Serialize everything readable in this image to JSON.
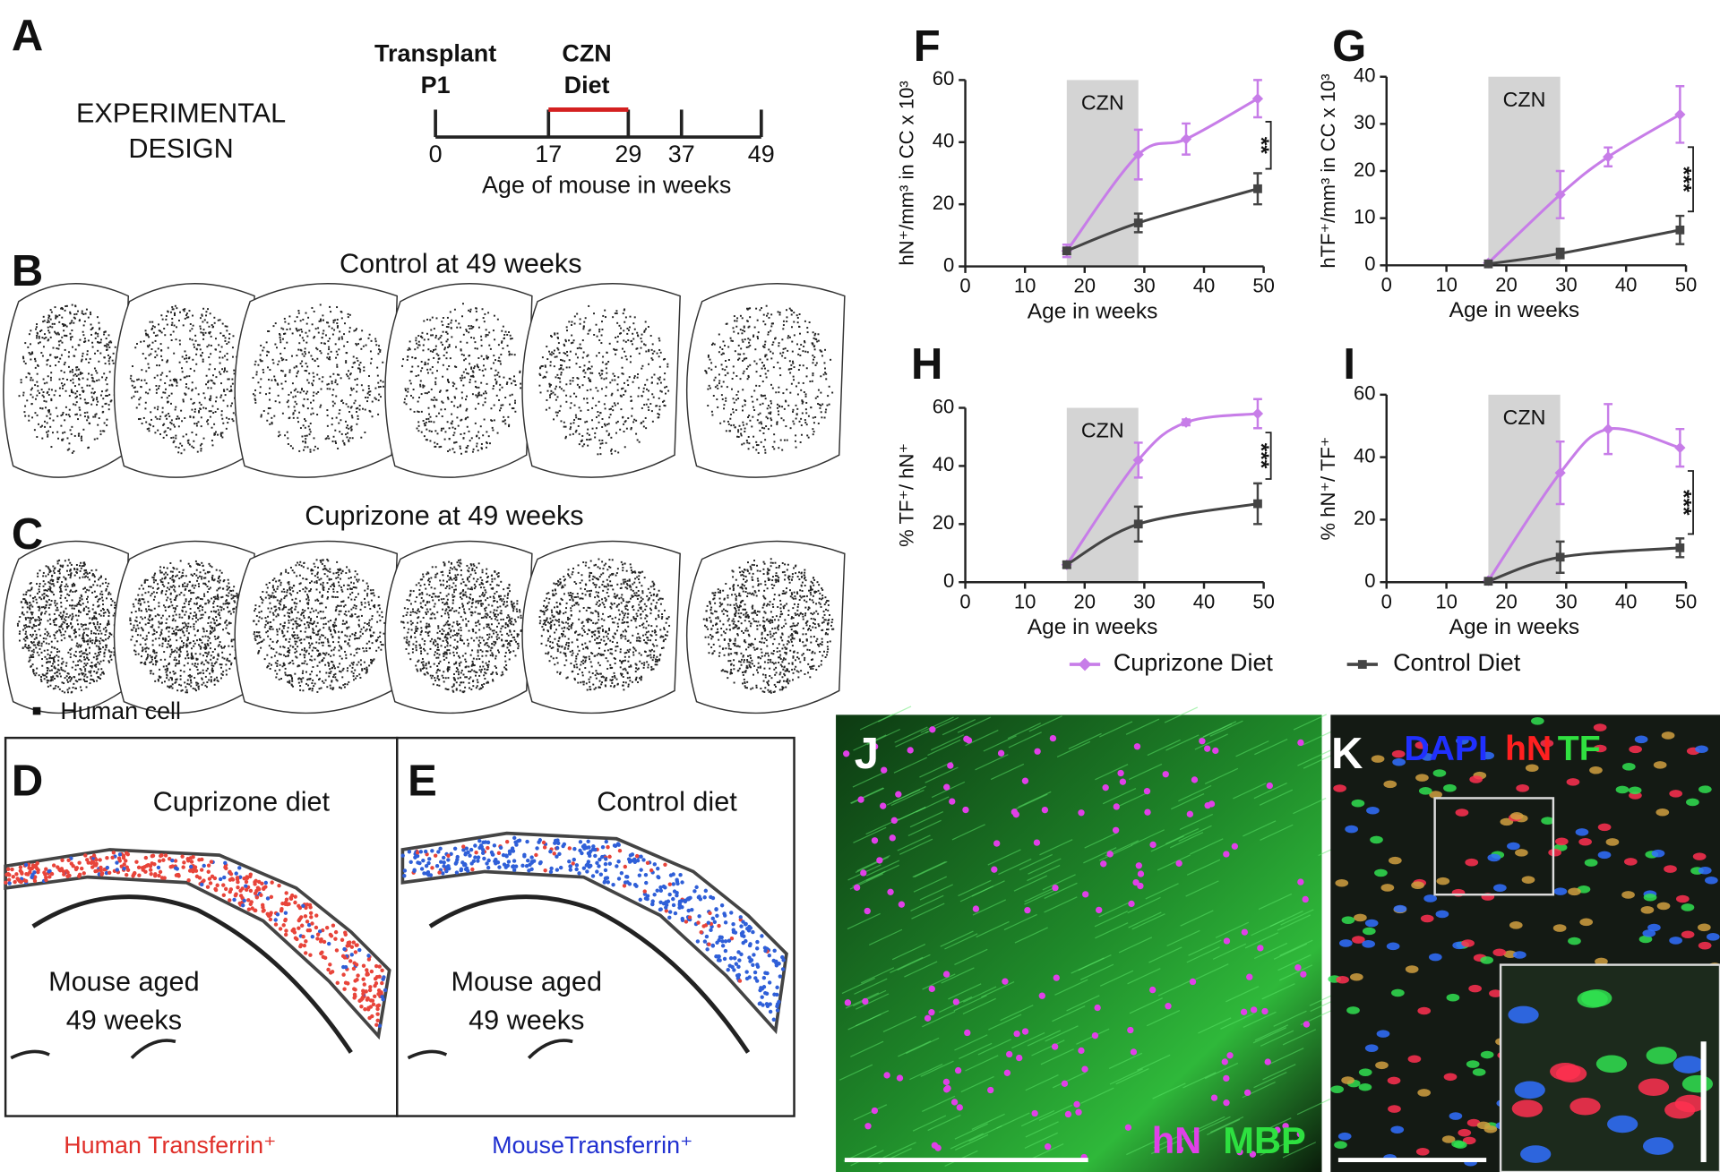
{
  "panel_labels": [
    "A",
    "B",
    "C",
    "D",
    "E",
    "F",
    "G",
    "H",
    "I",
    "J",
    "K"
  ],
  "design": {
    "heading": [
      "EXPERIMENTAL",
      "DESIGN"
    ],
    "transplant": [
      "Transplant",
      "P1"
    ],
    "diet": [
      "CZN",
      "Diet"
    ],
    "xlim": [
      0,
      49
    ],
    "ticks": [
      0,
      17,
      29,
      37,
      49
    ],
    "diet_weeks": [
      17,
      29
    ],
    "axis_label": "Age of mouse in weeks"
  },
  "sections": {
    "control_title": "Control at 49 weeks",
    "cuprizone_title": "Cuprizone at 49 weeks",
    "legend": "Human cell"
  },
  "schematics": {
    "cuprizone_title": "Cuprizone diet",
    "control_title": "Control diet",
    "cuprizone_mouse": [
      "Mouse aged",
      "49 weeks"
    ],
    "control_mouse": [
      "Mouse aged",
      "49 weeks"
    ],
    "human_caption": "Human Transferrin⁺",
    "mouse_caption": "MouseTransferrin⁺"
  },
  "micrographs": {
    "j_labels": [
      "hN",
      "MBP"
    ],
    "k_labels": [
      "DAPI",
      "hN",
      "TF"
    ]
  },
  "chart_data": [
    {
      "type": "line",
      "xlabel": "Age in weeks",
      "ylabel": "hN⁺/mm³ in CC x 10³",
      "xlim": [
        0,
        50
      ],
      "xticks": [
        0,
        10,
        20,
        30,
        40,
        50
      ],
      "ylim": [
        0,
        60
      ],
      "yticks": [
        0,
        20,
        40,
        60
      ],
      "shade": [
        17,
        29
      ],
      "shade_label": "CZN",
      "significance": "**",
      "series": [
        {
          "name": "Cuprizone Diet",
          "color": "#c77de8",
          "marker": "diamond",
          "x": [
            17,
            29,
            37,
            49
          ],
          "values": [
            5,
            36,
            41,
            54
          ],
          "errors": [
            2,
            8,
            5,
            6
          ]
        },
        {
          "name": "Control Diet",
          "color": "#444444",
          "marker": "square",
          "x": [
            17,
            29,
            49
          ],
          "values": [
            5,
            14,
            25
          ],
          "errors": [
            1,
            3,
            5
          ]
        }
      ]
    },
    {
      "type": "line",
      "xlabel": "Age in weeks",
      "ylabel": "hTF⁺/mm³ in CC x 10³",
      "xlim": [
        0,
        50
      ],
      "xticks": [
        0,
        10,
        20,
        30,
        40,
        50
      ],
      "ylim": [
        0,
        40
      ],
      "yticks": [
        0,
        10,
        20,
        30,
        40
      ],
      "shade": [
        17,
        29
      ],
      "shade_label": "CZN",
      "significance": "***",
      "series": [
        {
          "name": "Cuprizone Diet",
          "color": "#c77de8",
          "marker": "diamond",
          "x": [
            17,
            29,
            37,
            49
          ],
          "values": [
            0.5,
            15,
            23,
            32
          ],
          "errors": [
            0.5,
            5,
            2,
            6
          ]
        },
        {
          "name": "Control Diet",
          "color": "#444444",
          "marker": "square",
          "x": [
            17,
            29,
            49
          ],
          "values": [
            0.3,
            2.5,
            7.5
          ],
          "errors": [
            0.2,
            1,
            3
          ]
        }
      ]
    },
    {
      "type": "line",
      "xlabel": "Age in weeks",
      "ylabel": "% TF⁺/ hN⁺",
      "xlim": [
        0,
        50
      ],
      "xticks": [
        0,
        10,
        20,
        30,
        40,
        50
      ],
      "ylim": [
        0,
        60
      ],
      "yticks": [
        0,
        20,
        40,
        60
      ],
      "shade": [
        17,
        29
      ],
      "shade_label": "CZN",
      "significance": "***",
      "series": [
        {
          "name": "Cuprizone Diet",
          "color": "#c77de8",
          "marker": "diamond",
          "x": [
            17,
            29,
            37,
            49
          ],
          "values": [
            6,
            42,
            55,
            58
          ],
          "errors": [
            1,
            6,
            1,
            5
          ]
        },
        {
          "name": "Control Diet",
          "color": "#444444",
          "marker": "square",
          "x": [
            17,
            29,
            49
          ],
          "values": [
            6,
            20,
            27
          ],
          "errors": [
            1,
            6,
            7
          ]
        }
      ]
    },
    {
      "type": "line",
      "xlabel": "Age in weeks",
      "ylabel": "% hN⁺/ TF⁺",
      "xlim": [
        0,
        50
      ],
      "xticks": [
        0,
        10,
        20,
        30,
        40,
        50
      ],
      "ylim": [
        0,
        60
      ],
      "yticks": [
        0,
        20,
        40,
        60
      ],
      "shade": [
        17,
        29
      ],
      "shade_label": "CZN",
      "significance": "***",
      "series": [
        {
          "name": "Cuprizone Diet",
          "color": "#c77de8",
          "marker": "diamond",
          "x": [
            17,
            29,
            37,
            49
          ],
          "values": [
            0.5,
            35,
            49,
            43
          ],
          "errors": [
            0.5,
            10,
            8,
            6
          ]
        },
        {
          "name": "Control Diet",
          "color": "#444444",
          "marker": "square",
          "x": [
            17,
            29,
            49
          ],
          "values": [
            0.3,
            8,
            11
          ],
          "errors": [
            0.2,
            5,
            3
          ]
        }
      ]
    }
  ]
}
